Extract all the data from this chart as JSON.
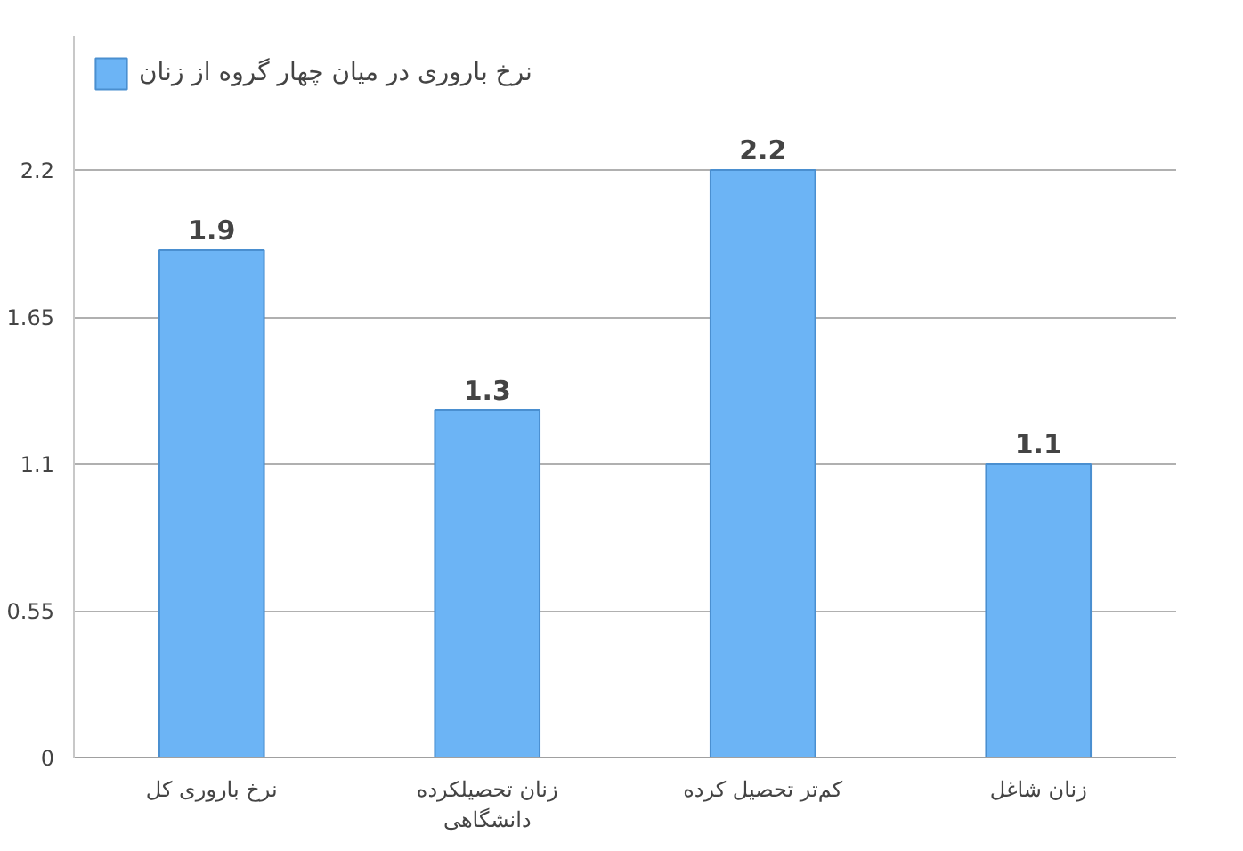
{
  "chart_data": {
    "type": "bar",
    "categories": [
      "نرخ باروری کل",
      "زنان تحصیلکرده دانشگاهی",
      "کم‌تر تحصیل کرده",
      "زنان شاغل"
    ],
    "series": [
      {
        "name": "نرخ باروری در میان چهار گروه از زنان",
        "color": "#6cb4f5",
        "values": [
          1.9,
          1.3,
          2.2,
          1.1
        ]
      }
    ],
    "ylim": [
      0,
      2.7
    ],
    "yticks": [
      0,
      0.55,
      1.1,
      1.65,
      2.2
    ],
    "grid": "y",
    "legend": "top left",
    "data_labels": true
  }
}
